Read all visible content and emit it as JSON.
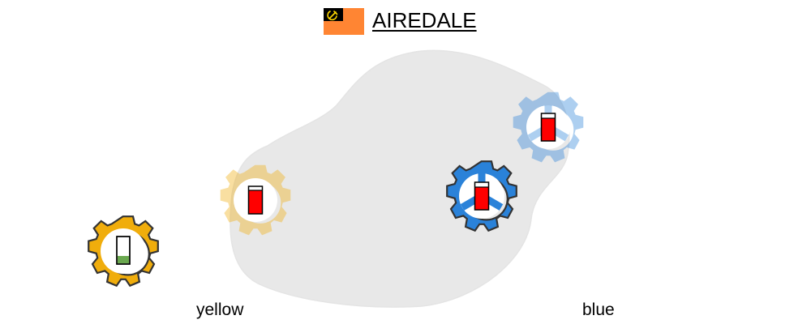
{
  "header": {
    "title": "AIREDALE",
    "flag": {
      "icon": "hammer-sickle-icon",
      "color": "#ff8533",
      "canton_color": "#000000",
      "emblem_color": "#ffd700"
    }
  },
  "territory": {
    "color": "#e8e8e8"
  },
  "teams": [
    {
      "label": "yellow",
      "color": "#f0ad0c"
    },
    {
      "label": "blue",
      "color": "#2a82d9"
    }
  ],
  "units": [
    {
      "id": "yellow-gear-home",
      "team": "yellow",
      "gear_color": "#f0ad0c",
      "faded": false,
      "peace_sign": false,
      "fill_level": 0.3,
      "fill_color": "#6aa84f"
    },
    {
      "id": "yellow-gear-remote",
      "team": "yellow",
      "gear_color": "#f0ad0c",
      "faded": true,
      "peace_sign": false,
      "fill_level": 0.85,
      "fill_color": "#ff0000"
    },
    {
      "id": "blue-gear-main",
      "team": "blue",
      "gear_color": "#2a82d9",
      "faded": false,
      "peace_sign": true,
      "fill_level": 0.85,
      "fill_color": "#ff0000"
    },
    {
      "id": "blue-gear-remote",
      "team": "blue",
      "gear_color": "#2a82d9",
      "faded": true,
      "peace_sign": true,
      "fill_level": 0.85,
      "fill_color": "#ff0000"
    }
  ]
}
